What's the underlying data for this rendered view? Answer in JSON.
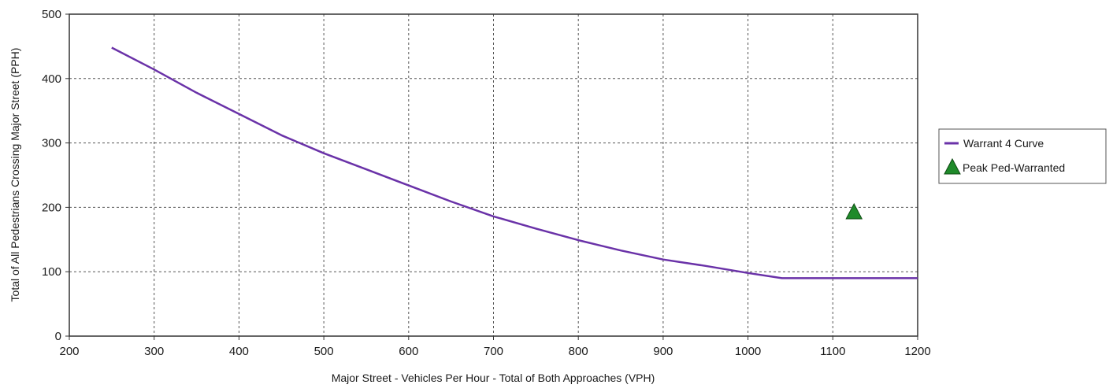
{
  "chart_data": {
    "type": "line",
    "xlabel": "Major Street - Vehicles Per Hour - Total of Both Approaches (VPH)",
    "ylabel": "Total of All Pedestrians Crossing Major Street (PPH)",
    "xlim": [
      200,
      1200
    ],
    "ylim": [
      0,
      500
    ],
    "xticks": [
      "200",
      "300",
      "400",
      "500",
      "600",
      "700",
      "800",
      "900",
      "1000",
      "1100",
      "1200"
    ],
    "yticks": [
      "0",
      "100",
      "200",
      "300",
      "400",
      "500"
    ],
    "grid": true,
    "legend_position": "right",
    "series": [
      {
        "name": "Warrant 4 Curve",
        "kind": "line",
        "color": "#6a32a8",
        "x": [
          250,
          300,
          350,
          400,
          450,
          500,
          550,
          600,
          650,
          700,
          750,
          800,
          850,
          900,
          950,
          1000,
          1040,
          1100,
          1150,
          1200
        ],
        "y": [
          448,
          414,
          378,
          345,
          312,
          284,
          259,
          234,
          209,
          186,
          167,
          149,
          133,
          119,
          109,
          98,
          90,
          90,
          90,
          90
        ]
      },
      {
        "name": "Peak Ped-Warranted",
        "kind": "marker",
        "marker": "triangle",
        "color": "#1f8a2a",
        "x": [
          1125
        ],
        "y": [
          192
        ]
      }
    ]
  }
}
